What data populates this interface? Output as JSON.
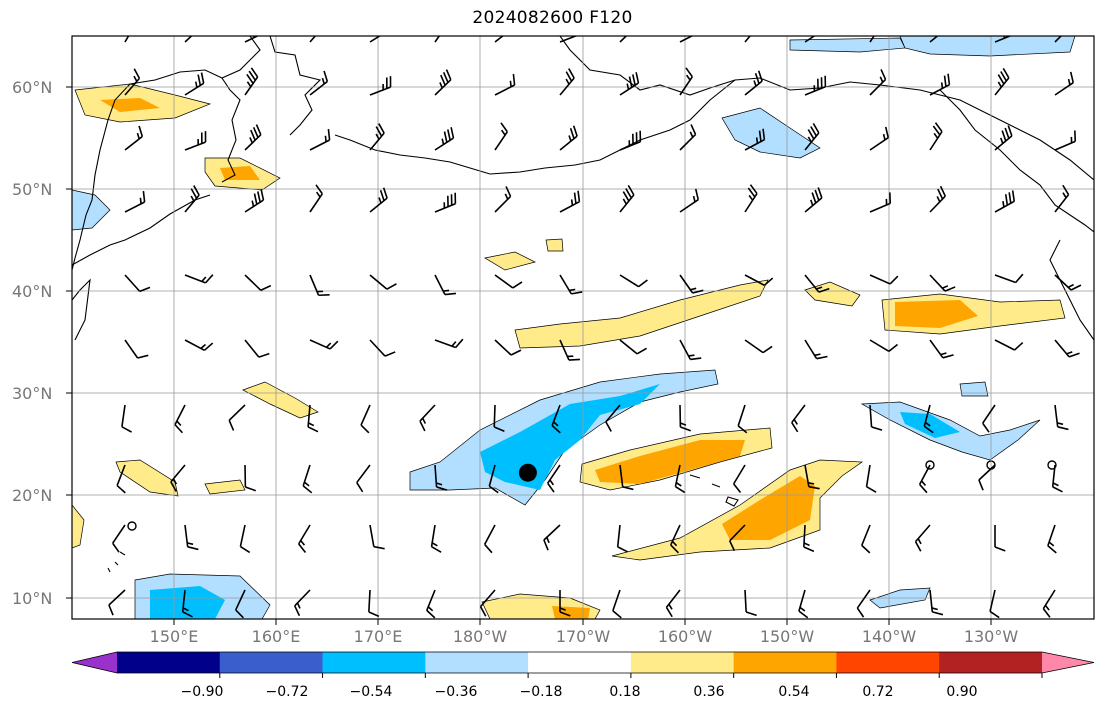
{
  "title": "2024082600 F120",
  "axes": {
    "lat_labels": [
      {
        "text": "60°N",
        "lat": 60
      },
      {
        "text": "50°N",
        "lat": 50
      },
      {
        "text": "40°N",
        "lat": 40
      },
      {
        "text": "30°N",
        "lat": 30
      },
      {
        "text": "20°N",
        "lat": 20
      },
      {
        "text": "10°N",
        "lat": 10
      }
    ],
    "lon_labels": [
      {
        "text": "150°E",
        "lon": 150
      },
      {
        "text": "160°E",
        "lon": 160
      },
      {
        "text": "170°E",
        "lon": 170
      },
      {
        "text": "180°W",
        "lon": 180
      },
      {
        "text": "170°W",
        "lon": 190
      },
      {
        "text": "160°W",
        "lon": 200
      },
      {
        "text": "150°W",
        "lon": 210
      },
      {
        "text": "140°W",
        "lon": 220
      },
      {
        "text": "130°W",
        "lon": 230
      }
    ],
    "lon_range": [
      140,
      242
    ],
    "lat_range": [
      8,
      65
    ],
    "grid": true
  },
  "colorbar": {
    "labels": [
      "−0.90",
      "−0.72",
      "−0.54",
      "−0.36",
      "−0.18",
      "0.18",
      "0.36",
      "0.54",
      "0.72",
      "0.90"
    ],
    "colors": [
      "#9932CC",
      "#00008B",
      "#3A5FCD",
      "#00BFFF",
      "#B2DFFF",
      "#FFFFFF",
      "#FFEB8A",
      "#FFA500",
      "#FF4500",
      "#B22222",
      "#FF88AA"
    ],
    "extend": "both"
  },
  "map": {
    "marker": {
      "lon": 185.5,
      "lat": 22.3,
      "color": "#000000"
    },
    "colors": {
      "light_blue": "#B2DFFF",
      "mid_blue": "#00BFFF",
      "light_yellow": "#FFEB8A",
      "orange": "#FFA500",
      "red": "#FF4500",
      "coast": "#000000"
    }
  }
}
